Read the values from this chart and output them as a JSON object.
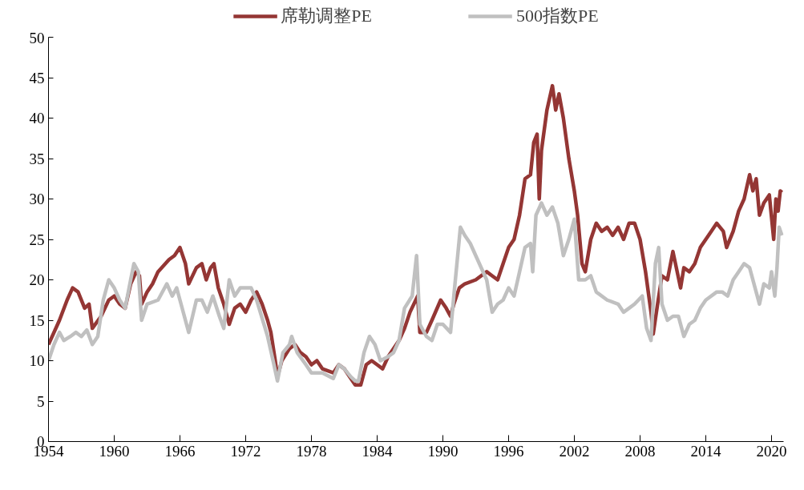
{
  "chart_data": {
    "type": "line",
    "xlim": [
      1954,
      2021.1
    ],
    "xticks": [
      1954,
      1960,
      1966,
      1972,
      1978,
      1984,
      1990,
      1996,
      2002,
      2008,
      2014,
      2020
    ],
    "ylim": [
      0,
      50
    ],
    "yticks": [
      0,
      5,
      10,
      15,
      20,
      25,
      30,
      35,
      40,
      45,
      50
    ],
    "grid": false,
    "legend": "top",
    "line_style": "solid",
    "marker": "none",
    "series": [
      {
        "name": "席勒调整PE",
        "color": "#943634",
        "x": [
          1954.0,
          1955,
          1955.7,
          1956.2,
          1956.7,
          1957.3,
          1957.7,
          1958.0,
          1958.8,
          1959.5,
          1960.0,
          1960.5,
          1961.0,
          1961.5,
          1962.0,
          1962.3,
          1962.5,
          1963.0,
          1963.5,
          1964,
          1965,
          1965.5,
          1966.0,
          1966.5,
          1966.8,
          1967.5,
          1968,
          1968.4,
          1968.8,
          1969.1,
          1969.5,
          1970.0,
          1970.5,
          1971,
          1971.5,
          1972,
          1972.5,
          1973.0,
          1973.5,
          1974.0,
          1974.3,
          1974.7,
          1974.9,
          1975.3,
          1976,
          1976.5,
          1977,
          1977.5,
          1978.0,
          1978.5,
          1979,
          1980,
          1980.5,
          1981,
          1981.5,
          1982,
          1982.5,
          1983,
          1983.5,
          1984,
          1984.5,
          1985,
          1986,
          1986.5,
          1987,
          1987.7,
          1987.9,
          1988.5,
          1989,
          1989.8,
          1990.3,
          1990.7,
          1991,
          1991.5,
          1992,
          1993,
          1994,
          1994.5,
          1995,
          1995.5,
          1996,
          1996.5,
          1997,
          1997.5,
          1998,
          1998.3,
          1998.6,
          1998.8,
          1999.0,
          1999.5,
          2000,
          2000.3,
          2000.6,
          2001,
          2001.5,
          2002,
          2002.3,
          2002.7,
          2003,
          2003.5,
          2004,
          2004.5,
          2005,
          2005.5,
          2006,
          2006.5,
          2007,
          2007.5,
          2008,
          2008.5,
          2009,
          2009.2,
          2009.6,
          2010,
          2010.5,
          2011,
          2011.7,
          2012,
          2012.5,
          2013,
          2013.5,
          2014,
          2014.5,
          2015,
          2015.6,
          2015.9,
          2016.5,
          2017,
          2017.5,
          2018.0,
          2018.3,
          2018.6,
          2018.9,
          2019.3,
          2019.8,
          2020.2,
          2020.4,
          2020.6,
          2020.8,
          2020.95
        ],
        "values": [
          12,
          15,
          17.5,
          19,
          18.5,
          16.5,
          17,
          14,
          15.5,
          17.5,
          18,
          17,
          16.5,
          19.5,
          21,
          20.5,
          17,
          18.5,
          19.5,
          21,
          22.5,
          23,
          24,
          22,
          19.5,
          21.5,
          22,
          20,
          21.5,
          22,
          19,
          17,
          14.5,
          16.5,
          17,
          16,
          17.5,
          18.5,
          17,
          15,
          13.5,
          10,
          8,
          10,
          11.5,
          12,
          11,
          10.5,
          9.5,
          10,
          9,
          8.5,
          9.5,
          9,
          8,
          7,
          7,
          9.5,
          10,
          9.5,
          9,
          10.5,
          12.5,
          14,
          16,
          18,
          13.5,
          13.5,
          15,
          17.5,
          16.5,
          15.5,
          17,
          19,
          19.5,
          20,
          21,
          20.5,
          20,
          22,
          24,
          25,
          28,
          32.5,
          33,
          37,
          38,
          30,
          36,
          41,
          44,
          41,
          43,
          40,
          35,
          31,
          28,
          22,
          21,
          25,
          27,
          26,
          26.5,
          25.5,
          26.5,
          25,
          27,
          27,
          25,
          21,
          16,
          13.3,
          17,
          20.5,
          20,
          23.5,
          19,
          21.5,
          21,
          22,
          24,
          25,
          26,
          27,
          26,
          24,
          26,
          28.5,
          30,
          33,
          31,
          32.5,
          28,
          29.5,
          30.5,
          25,
          30,
          28.5,
          31,
          30.8
        ]
      },
      {
        "name": "500指数PE",
        "color": "#c0c0c0",
        "x": [
          1954,
          1954.5,
          1955,
          1955.4,
          1956,
          1956.5,
          1957,
          1957.5,
          1958,
          1958.5,
          1959,
          1959.5,
          1960,
          1960.5,
          1961,
          1961.5,
          1961.8,
          1962.2,
          1962.5,
          1963,
          1964,
          1964.8,
          1965.3,
          1965.7,
          1966,
          1966.8,
          1967.5,
          1968,
          1968.5,
          1969,
          1969.6,
          1970,
          1970.5,
          1971,
          1971.5,
          1972.5,
          1973,
          1974,
          1974.5,
          1974.9,
          1975.4,
          1976,
          1976.2,
          1976.7,
          1977.5,
          1978,
          1979,
          1980,
          1980.5,
          1981,
          1981.6,
          1982,
          1982.3,
          1982.8,
          1983.3,
          1983.8,
          1984.3,
          1985,
          1985.5,
          1986,
          1986.5,
          1987.2,
          1987.6,
          1987.9,
          1988.5,
          1989,
          1989.5,
          1990,
          1990.7,
          1991,
          1991.6,
          1992,
          1992.5,
          1993,
          1994,
          1994.5,
          1995,
          1995.5,
          1996,
          1996.5,
          1997,
          1997.5,
          1998,
          1998.2,
          1998.5,
          1999,
          1999.5,
          2000,
          2000.5,
          2001,
          2001.5,
          2002,
          2002.4,
          2003,
          2003.5,
          2004,
          2005,
          2006,
          2006.5,
          2007,
          2007.5,
          2008.2,
          2008.6,
          2009,
          2009.4,
          2009.7,
          2010,
          2010.5,
          2011,
          2011.5,
          2012,
          2012.5,
          2013,
          2013.5,
          2014,
          2015,
          2015.5,
          2016,
          2016.5,
          2017,
          2017.5,
          2018.0,
          2018.5,
          2018.9,
          2019.3,
          2019.8,
          2020.0,
          2020.3,
          2020.5,
          2020.7,
          2020.95
        ],
        "values": [
          10,
          12,
          13.5,
          12.5,
          13,
          13.5,
          13,
          13.8,
          12,
          13,
          17.5,
          20,
          19,
          17.5,
          16.5,
          20,
          22,
          21,
          15,
          17,
          17.5,
          19.5,
          18,
          19,
          17.5,
          13.5,
          17.5,
          17.5,
          16,
          18,
          15.5,
          14,
          20,
          18,
          19,
          19,
          17.5,
          13,
          10,
          7.5,
          11,
          12,
          13,
          11,
          9.5,
          8.5,
          8.5,
          7.8,
          9.5,
          9,
          8,
          7.5,
          7.5,
          11,
          13,
          12,
          10,
          10.5,
          11,
          12.5,
          16.5,
          18,
          23,
          14.5,
          13,
          12.5,
          14.5,
          14.5,
          13.5,
          18,
          26.5,
          25.5,
          24.5,
          23,
          20,
          16,
          17,
          17.5,
          19,
          18,
          21,
          24,
          24.5,
          21,
          28,
          29.5,
          28,
          29,
          27,
          23,
          25,
          27.5,
          20,
          20,
          20.5,
          18.5,
          17.5,
          17,
          16,
          16.5,
          17,
          18,
          14,
          12.5,
          22,
          24,
          17,
          15,
          15.5,
          15.5,
          13,
          14.5,
          15,
          16.5,
          17.5,
          18.5,
          18.5,
          18,
          20,
          21,
          22,
          21.5,
          19,
          17,
          19.5,
          19,
          21,
          18,
          21.5,
          26.5,
          25.5
        ]
      }
    ]
  }
}
